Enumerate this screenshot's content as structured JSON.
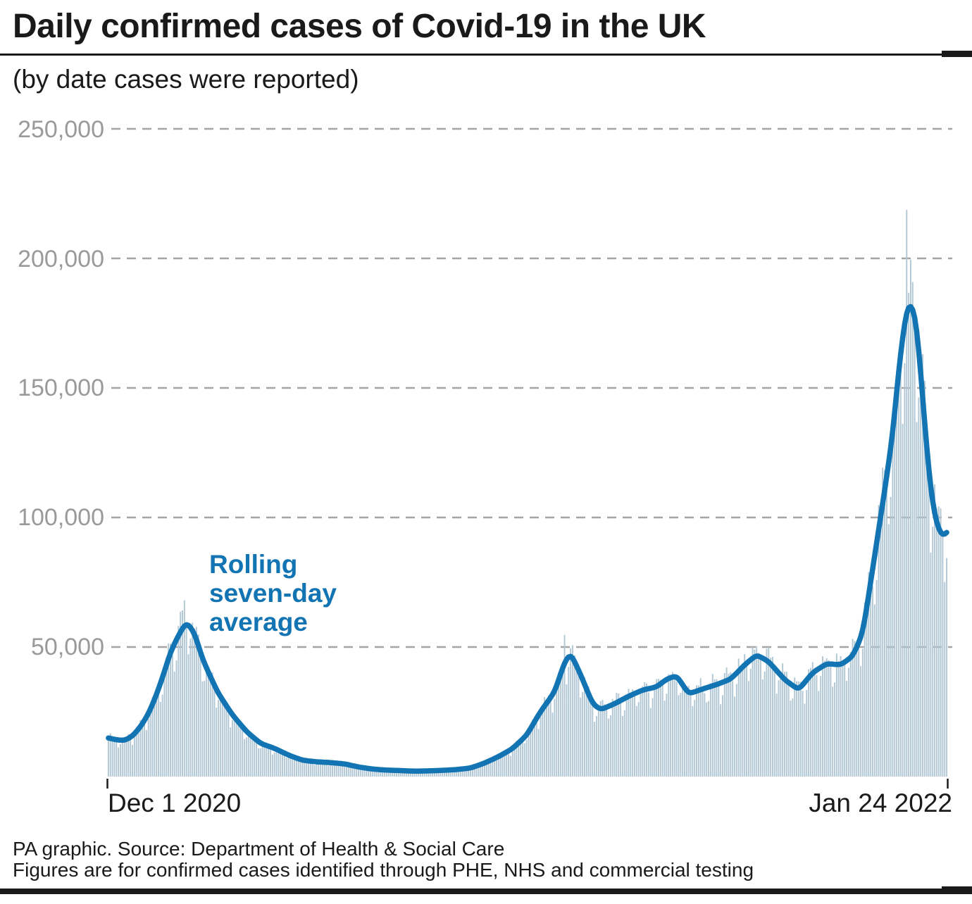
{
  "page": {
    "title": "Daily confirmed cases of Covid-19 in the UK",
    "subtitle": "(by date cases were reported)",
    "footer_line1": "PA graphic. Source: Department of Health & Social Care",
    "footer_line2": "Figures are for confirmed cases identified through PHE, NHS and commercial testing"
  },
  "colors": {
    "bars": "#b1c7d4",
    "line": "#1274b2",
    "annotation": "#1274b2",
    "grid": "#a5a5a5",
    "axis_text": "#9a9a9a",
    "text": "#1a1a1a"
  },
  "chart_data": {
    "type": "bar",
    "title": "Daily confirmed cases of Covid-19 in the UK",
    "subtitle": "(by date cases were reported)",
    "grid": "horizontal dashed",
    "legend_position": "none (in-chart annotation only)",
    "annotation": {
      "lines": [
        "Rolling",
        "seven-day",
        "average"
      ],
      "color": "#1274b2"
    },
    "x_axis": {
      "start_label": "Dec 1 2020",
      "end_label": "Jan 24 2022",
      "days": 420
    },
    "y_axis": {
      "ylim": [
        0,
        250000
      ],
      "ticks": [
        250000,
        200000,
        150000,
        100000,
        50000
      ],
      "tick_labels": [
        "250,000",
        "200,000",
        "150,000",
        "100,000",
        "50,000"
      ]
    },
    "series": [
      {
        "name": "Daily confirmed cases",
        "type": "bar",
        "color": "#b1c7d4"
      },
      {
        "name": "Rolling seven-day average",
        "type": "line",
        "color": "#1274b2"
      }
    ],
    "average_control_points": [
      [
        0,
        14900
      ],
      [
        4,
        14200
      ],
      [
        8,
        13900
      ],
      [
        12,
        15600
      ],
      [
        16,
        19200
      ],
      [
        20,
        24200
      ],
      [
        24,
        31500
      ],
      [
        28,
        40500
      ],
      [
        31,
        48000
      ],
      [
        35,
        54500
      ],
      [
        39,
        59700
      ],
      [
        43,
        55500
      ],
      [
        47,
        45500
      ],
      [
        51,
        38500
      ],
      [
        55,
        32000
      ],
      [
        62,
        23800
      ],
      [
        69,
        17400
      ],
      [
        76,
        12800
      ],
      [
        83,
        10900
      ],
      [
        90,
        8300
      ],
      [
        97,
        6300
      ],
      [
        104,
        5700
      ],
      [
        111,
        5400
      ],
      [
        118,
        4900
      ],
      [
        125,
        3700
      ],
      [
        132,
        2900
      ],
      [
        139,
        2500
      ],
      [
        146,
        2300
      ],
      [
        153,
        2100
      ],
      [
        160,
        2200
      ],
      [
        167,
        2400
      ],
      [
        174,
        2700
      ],
      [
        181,
        3300
      ],
      [
        188,
        5200
      ],
      [
        195,
        7700
      ],
      [
        202,
        10800
      ],
      [
        209,
        15900
      ],
      [
        216,
        25100
      ],
      [
        223,
        32600
      ],
      [
        228,
        44200
      ],
      [
        231,
        47700
      ],
      [
        236,
        39400
      ],
      [
        242,
        28100
      ],
      [
        246,
        25800
      ],
      [
        253,
        28100
      ],
      [
        260,
        31000
      ],
      [
        267,
        33400
      ],
      [
        274,
        34600
      ],
      [
        279,
        37600
      ],
      [
        284,
        39000
      ],
      [
        290,
        31900
      ],
      [
        297,
        33800
      ],
      [
        304,
        35500
      ],
      [
        311,
        37600
      ],
      [
        318,
        43100
      ],
      [
        324,
        47000
      ],
      [
        330,
        44400
      ],
      [
        338,
        37400
      ],
      [
        345,
        33500
      ],
      [
        352,
        40100
      ],
      [
        359,
        43600
      ],
      [
        366,
        43100
      ],
      [
        372,
        46400
      ],
      [
        377,
        55200
      ],
      [
        380,
        70100
      ],
      [
        384,
        90300
      ],
      [
        388,
        110400
      ],
      [
        392,
        132000
      ],
      [
        395,
        157000
      ],
      [
        398,
        176000
      ],
      [
        400,
        183200
      ],
      [
        403,
        179800
      ],
      [
        405,
        166000
      ],
      [
        408,
        136200
      ],
      [
        411,
        110100
      ],
      [
        414,
        97100
      ],
      [
        417,
        92400
      ],
      [
        419,
        94200
      ]
    ],
    "bar_overrides": {
      "38": 68053,
      "228": 54674,
      "399": 218724
    },
    "weekday_factors": [
      0.8,
      0.88,
      1.06,
      1.08,
      1.07,
      1.05,
      0.97
    ],
    "weekday_offset": 2,
    "noise_amplitude": 0.06
  }
}
